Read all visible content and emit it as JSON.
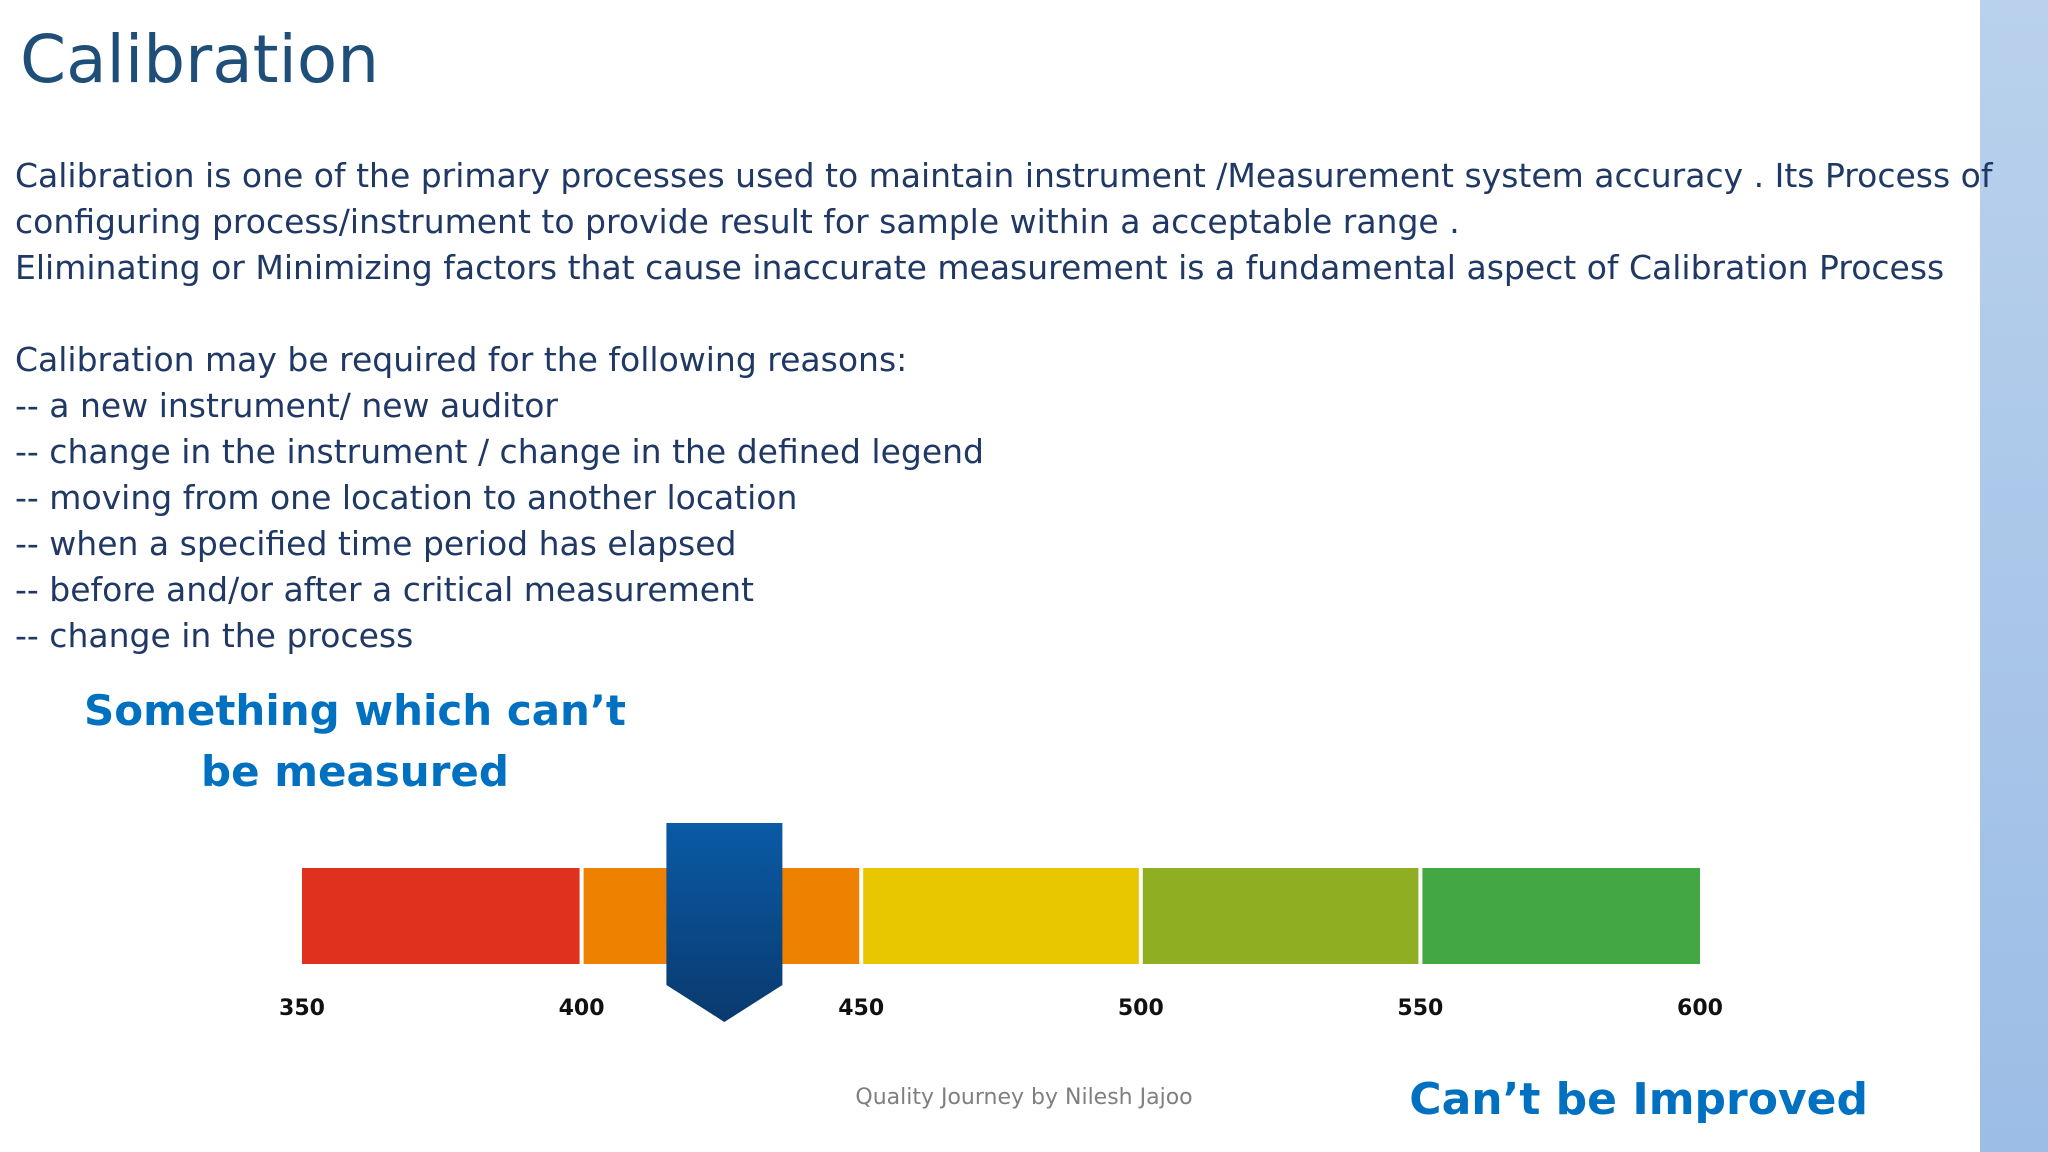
{
  "slide": {
    "title": "Calibration",
    "paragraph_lines": [
      "Calibration is one of the primary processes used to maintain instrument /Measurement system  accuracy . Its Process of",
      "configuring process/instrument to provide result for sample within a acceptable range .",
      "Eliminating or Minimizing factors that cause inaccurate measurement is a fundamental aspect of Calibration Process"
    ],
    "reasons_heading": "Calibration may be required for the following reasons:",
    "reasons": [
      "-- a new instrument/ new auditor",
      "-- change in the instrument / change in the defined legend",
      "-- moving from one location to another location",
      "-- when a specified time period has elapsed",
      "-- before and/or after a critical measurement",
      "-- change in the process"
    ],
    "callout_top": [
      "Something which can’t",
      "be measured"
    ],
    "callout_bottom": "Can’t be Improved",
    "footer": "Quality Journey by Nilesh Jajoo",
    "colors": {
      "title": "#1f4e79",
      "body": "#1f3864",
      "callout": "#0070c0",
      "side_bar": "#a9c6ea"
    }
  },
  "chart_data": {
    "type": "bar",
    "description_free": true,
    "x_range": [
      350,
      600
    ],
    "ticks": [
      "350",
      "400",
      "450",
      "500",
      "550",
      "600"
    ],
    "segments": [
      {
        "from": 350,
        "to": 400,
        "color": "#e0301e"
      },
      {
        "from": 400,
        "to": 450,
        "color": "#ee8100"
      },
      {
        "from": 450,
        "to": 500,
        "color": "#e8c600"
      },
      {
        "from": 500,
        "to": 550,
        "color": "#8fae22"
      },
      {
        "from": 550,
        "to": 600,
        "color": "#43a843"
      }
    ],
    "marker_value": 425,
    "marker_color": "#0a5aa6"
  }
}
